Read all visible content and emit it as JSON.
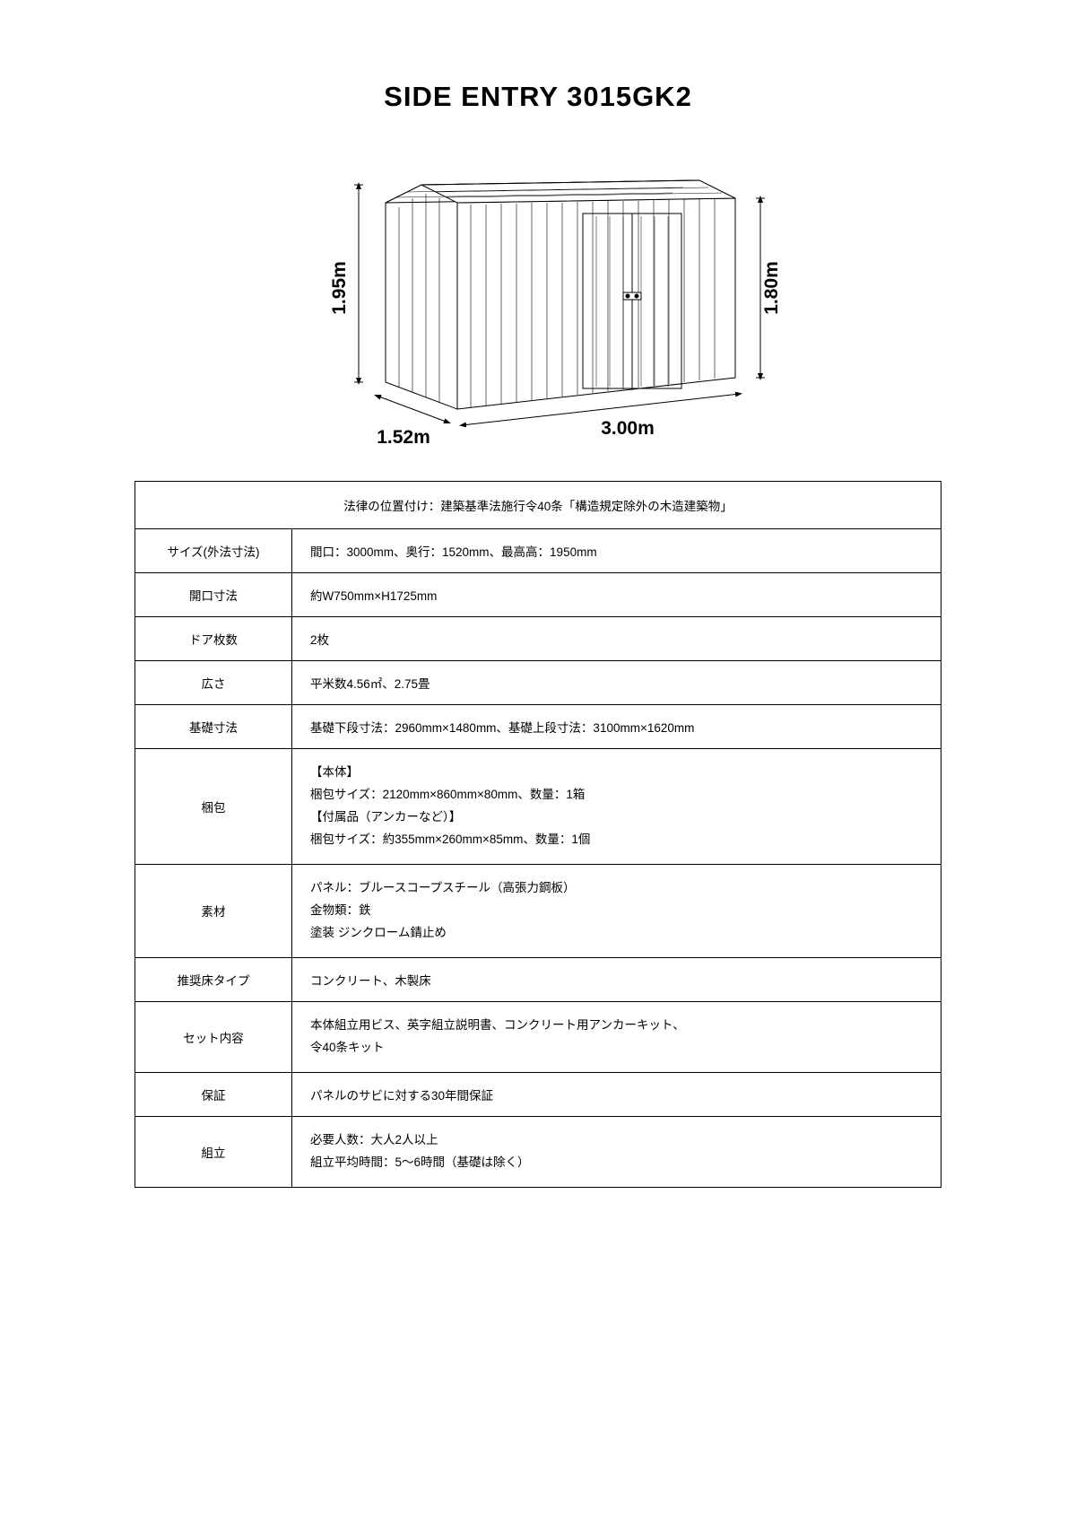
{
  "title": "SIDE ENTRY 3015GK2",
  "diagram": {
    "height_left": "1.95m",
    "height_right": "1.80m",
    "depth": "1.52m",
    "width": "3.00m",
    "stroke": "#000000",
    "stroke_width": 1,
    "panel_count": 18
  },
  "table": {
    "header": "法律の位置付け：建築基準法施行令40条「構造規定除外の木造建築物」",
    "rows": [
      {
        "label": "サイズ(外法寸法)",
        "value": "間口：3000mm、奥行：1520mm、最高高：1950mm"
      },
      {
        "label": "開口寸法",
        "value": "約W750mm×H1725mm"
      },
      {
        "label": "ドア枚数",
        "value": "2枚"
      },
      {
        "label": "広さ",
        "value": "平米数4.56㎡、2.75畳"
      },
      {
        "label": "基礎寸法",
        "value": "基礎下段寸法：2960mm×1480mm、基礎上段寸法：3100mm×1620mm"
      },
      {
        "label": "梱包",
        "value": "【本体】\n梱包サイズ：2120mm×860mm×80mm、数量：1箱\n【付属品（アンカーなど）】\n梱包サイズ：約355mm×260mm×85mm、数量：1個"
      },
      {
        "label": "素材",
        "value": "パネル：ブルースコープスチール（高張力鋼板）\n金物類：鉄\n塗装  ジンクローム錆止め"
      },
      {
        "label": "推奨床タイプ",
        "value": "コンクリート、木製床"
      },
      {
        "label": "セット内容",
        "value": "本体組立用ビス、英字組立説明書、コンクリート用アンカーキット、\n令40条キット"
      },
      {
        "label": "保証",
        "value": "パネルのサビに対する30年間保証"
      },
      {
        "label": "組立",
        "value": "必要人数：大人2人以上\n組立平均時間：5～6時間（基礎は除く）"
      }
    ]
  }
}
